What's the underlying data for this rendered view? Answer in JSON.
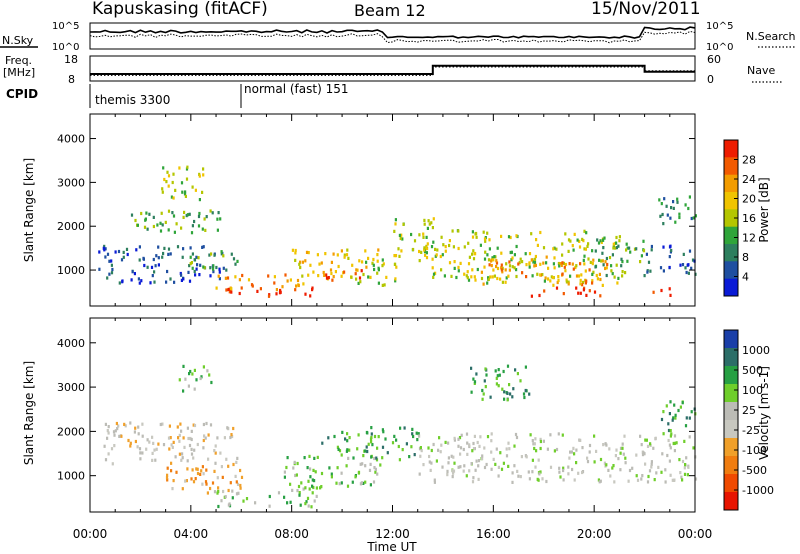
{
  "header": {
    "station": "Kapuskasing (fitACF)",
    "beam": "Beam 12",
    "date": "15/Nov/2011"
  },
  "summary": {
    "nsky_label": "N.Sky",
    "nsearch_label": "N.Search",
    "nsky_ticks": [
      "10^5",
      "10^0"
    ],
    "nsky_right_ticks": [
      "10^5",
      "10^0"
    ],
    "freq_label": "Freq.",
    "freq_unit": "[MHz]",
    "freq_ticks": [
      18,
      8
    ],
    "nave_label": "Nave",
    "nave_ticks": [
      60,
      0
    ],
    "cpid_label": "CPID",
    "cpid_segments": [
      {
        "name": "themis 3300",
        "start_h": 0.0
      },
      {
        "name": "normal (fast) 151",
        "start_h": 6.0
      }
    ],
    "freq_profile": [
      {
        "h": 0,
        "v": 10.6
      },
      {
        "h": 13.6,
        "v": 10.6
      },
      {
        "h": 13.6,
        "v": 14.2
      },
      {
        "h": 22,
        "v": 14.2
      },
      {
        "h": 22,
        "v": 11.6
      },
      {
        "h": 24,
        "v": 11.6
      }
    ],
    "nave_profile": [
      {
        "h": 0,
        "v": 12
      },
      {
        "h": 13.6,
        "v": 12
      },
      {
        "h": 13.6,
        "v": 34
      },
      {
        "h": 22,
        "v": 34
      },
      {
        "h": 22,
        "v": 24
      },
      {
        "h": 24,
        "v": 24
      }
    ]
  },
  "power_panel": {
    "ylabel": "Slant Range [km]",
    "cbar_label": "Power [dB]",
    "cbar_ticks": [
      "28",
      "24",
      "20",
      "16",
      "12",
      "8",
      "4"
    ],
    "cbar_colors": [
      "#ee1c00",
      "#f25a00",
      "#f39c00",
      "#f0c400",
      "#b4c600",
      "#2fa53a",
      "#2d7f5e",
      "#1f4fa0",
      "#0a1bd6"
    ]
  },
  "velocity_panel": {
    "ylabel": "Slant Range [km]",
    "cbar_label": "Velocity [m s-1]",
    "cbar_ticks": [
      "1000",
      "500",
      "100",
      "25",
      "-25",
      "-100",
      "-500",
      "-1000"
    ],
    "cbar_colors": [
      "#1a3fa8",
      "#2c6e68",
      "#27a043",
      "#6fce2b",
      "#bcbcb6",
      "#c8c8c0",
      "#f0a02a",
      "#f07d10",
      "#f04a00",
      "#e81400"
    ]
  },
  "xaxis": {
    "label": "Time UT",
    "ticks": [
      "00:00",
      "04:00",
      "08:00",
      "12:00",
      "16:00",
      "20:00",
      "00:00"
    ]
  },
  "chart_data": {
    "type": "heatmap",
    "title": "Kapuskasing (fitACF) Beam 12 15/Nov/2011",
    "xlabel": "Time UT",
    "ylabel": "Slant Range [km]",
    "xlim_hours": [
      0,
      24
    ],
    "ylim_km": [
      180,
      4560
    ],
    "yticks": [
      1000,
      2000,
      3000,
      4000
    ],
    "power_blobs": [
      {
        "t0": 0.3,
        "t1": 5.3,
        "r0": 700,
        "r1": 1550,
        "level": 1
      },
      {
        "t0": 1.0,
        "t1": 5.2,
        "r0": 1850,
        "r1": 2350,
        "level": 3
      },
      {
        "t0": 2.8,
        "t1": 4.5,
        "r0": 2600,
        "r1": 3400,
        "level": 4
      },
      {
        "t0": 3.9,
        "t1": 5.9,
        "r0": 1000,
        "r1": 1500,
        "level": 3
      },
      {
        "t0": 4.9,
        "t1": 8.5,
        "r0": 550,
        "r1": 900,
        "level": 6
      },
      {
        "t0": 5.2,
        "t1": 8.9,
        "r0": 380,
        "r1": 600,
        "level": 8
      },
      {
        "t0": 8.0,
        "t1": 11.5,
        "r0": 800,
        "r1": 1500,
        "level": 5
      },
      {
        "t0": 9.2,
        "t1": 10.8,
        "r0": 750,
        "r1": 1000,
        "level": 7
      },
      {
        "t0": 10.5,
        "t1": 12.2,
        "r0": 650,
        "r1": 1250,
        "level": 4
      },
      {
        "t0": 12.0,
        "t1": 13.6,
        "r0": 1300,
        "r1": 2200,
        "level": 4
      },
      {
        "t0": 13.0,
        "t1": 21.0,
        "r0": 700,
        "r1": 1900,
        "level": 4
      },
      {
        "t0": 15.5,
        "t1": 20.5,
        "r0": 650,
        "r1": 1300,
        "level": 6
      },
      {
        "t0": 17.0,
        "t1": 20.2,
        "r0": 400,
        "r1": 600,
        "level": 8
      },
      {
        "t0": 20.0,
        "t1": 22.0,
        "r0": 800,
        "r1": 1700,
        "level": 3
      },
      {
        "t0": 21.9,
        "t1": 24.0,
        "r0": 900,
        "r1": 1550,
        "level": 1
      },
      {
        "t0": 22.1,
        "t1": 23.0,
        "r0": 360,
        "r1": 580,
        "level": 8
      },
      {
        "t0": 22.5,
        "t1": 24.0,
        "r0": 2000,
        "r1": 2700,
        "level": 2
      }
    ],
    "velocity_blobs": [
      {
        "t0": 0.5,
        "t1": 5.8,
        "r0": 1250,
        "r1": 2200,
        "level": 4
      },
      {
        "t0": 3.0,
        "t1": 6.0,
        "r0": 600,
        "r1": 1300,
        "level": 3
      },
      {
        "t0": 3.5,
        "t1": 4.8,
        "r0": 2900,
        "r1": 3500,
        "level": 6
      },
      {
        "t0": 4.8,
        "t1": 9.0,
        "r0": 300,
        "r1": 700,
        "level": 6
      },
      {
        "t0": 7.5,
        "t1": 11.5,
        "r0": 700,
        "r1": 1500,
        "level": 6
      },
      {
        "t0": 9.0,
        "t1": 11.0,
        "r0": 1500,
        "r1": 2000,
        "level": 7
      },
      {
        "t0": 11.0,
        "t1": 13.0,
        "r0": 1300,
        "r1": 2100,
        "level": 7
      },
      {
        "t0": 13.0,
        "t1": 24.0,
        "r0": 850,
        "r1": 1950,
        "level": 5
      },
      {
        "t0": 15.0,
        "t1": 17.5,
        "r0": 2700,
        "r1": 3500,
        "level": 7
      },
      {
        "t0": 22.5,
        "t1": 24.0,
        "r0": 2000,
        "r1": 2700,
        "level": 7
      }
    ]
  }
}
